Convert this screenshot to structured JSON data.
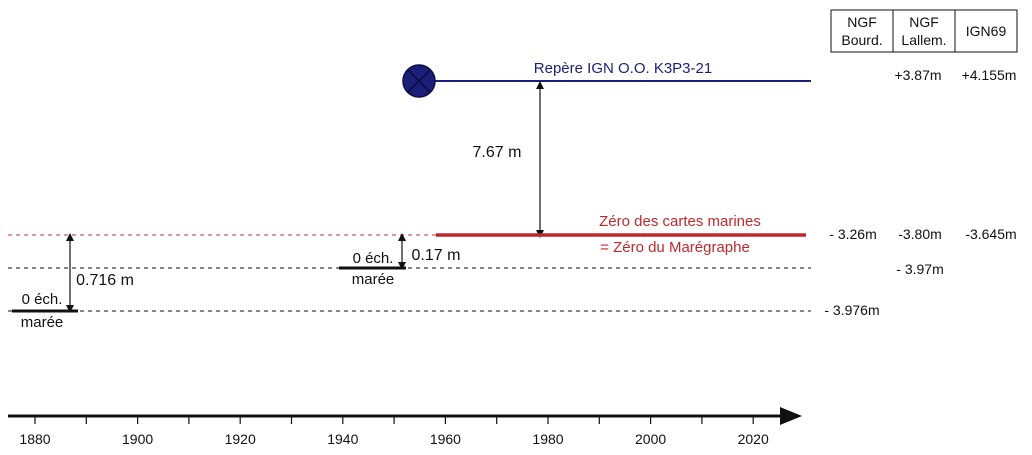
{
  "colors": {
    "benchmark": "#1b1f7a",
    "zero_charts": "#c0282e",
    "black": "#111111"
  },
  "table_headers": [
    {
      "line1": "NGF",
      "line2": "Bourd."
    },
    {
      "line1": "NGF",
      "line2": "Lallem."
    },
    {
      "line1": "IGN69",
      "line2": ""
    }
  ],
  "benchmark": {
    "label": "Repère IGN O.O. K3P3-21",
    "icon": "crossed-circle-icon",
    "values": [
      "+3.87m",
      "+4.155m"
    ]
  },
  "zero_charts": {
    "label_line1": "Zéro des cartes marines",
    "label_line2": "= Zéro du Marégraphe",
    "values": [
      "- 3.26m",
      "-3.80m",
      "-3.645m"
    ]
  },
  "distance_benchmark_to_zero": "7.67 m",
  "tide_gauge_1950": {
    "label_line1": "0 éch.",
    "label_line2": "marée",
    "offset": "0.17 m",
    "value": "- 3.97m"
  },
  "tide_gauge_1880": {
    "label_line1": "0 éch.",
    "label_line2": "marée",
    "offset": "0.716 m",
    "value": "- 3.976m"
  },
  "timeline": {
    "years": [
      "1880",
      "1900",
      "1920",
      "1940",
      "1960",
      "1980",
      "2000",
      "2020"
    ]
  }
}
